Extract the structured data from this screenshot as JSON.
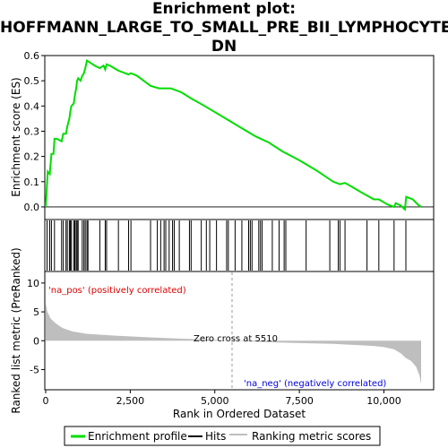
{
  "title_lines": [
    "Enrichment plot:",
    "HOFFMANN_LARGE_TO_SMALL_PRE_BII_LYMPHOCYTE_",
    "DN"
  ],
  "colors": {
    "es_line": "#00dd00",
    "hits": "#000000",
    "metric_fill": "#bebebe",
    "pos_label": "#dd0000",
    "neg_label": "#0000dd",
    "zero_cross": "#999999",
    "frame": "#000000"
  },
  "chart_data": {
    "type": "line",
    "top_panel": {
      "ylabel": "Enrichment score (ES)",
      "ylim": [
        -0.05,
        0.6
      ],
      "yticks": [
        "0.0",
        "0.1",
        "0.2",
        "0.3",
        "0.4",
        "0.5",
        "0.6"
      ],
      "xlim": [
        0,
        11100
      ],
      "es_points": [
        [
          0,
          0.0
        ],
        [
          60,
          0.14
        ],
        [
          120,
          0.13
        ],
        [
          170,
          0.21
        ],
        [
          230,
          0.21
        ],
        [
          260,
          0.27
        ],
        [
          330,
          0.27
        ],
        [
          470,
          0.26
        ],
        [
          520,
          0.29
        ],
        [
          600,
          0.29
        ],
        [
          640,
          0.32
        ],
        [
          700,
          0.35
        ],
        [
          730,
          0.38
        ],
        [
          760,
          0.4
        ],
        [
          830,
          0.41
        ],
        [
          860,
          0.44
        ],
        [
          900,
          0.47
        ],
        [
          930,
          0.5
        ],
        [
          960,
          0.51
        ],
        [
          1030,
          0.5
        ],
        [
          1080,
          0.52
        ],
        [
          1130,
          0.53
        ],
        [
          1170,
          0.55
        ],
        [
          1220,
          0.58
        ],
        [
          1280,
          0.575
        ],
        [
          1450,
          0.56
        ],
        [
          1600,
          0.55
        ],
        [
          1650,
          0.555
        ],
        [
          1710,
          0.56
        ],
        [
          1760,
          0.545
        ],
        [
          1800,
          0.565
        ],
        [
          1900,
          0.56
        ],
        [
          2150,
          0.54
        ],
        [
          2450,
          0.525
        ],
        [
          2520,
          0.53
        ],
        [
          2700,
          0.52
        ],
        [
          3100,
          0.48
        ],
        [
          3350,
          0.47
        ],
        [
          3700,
          0.47
        ],
        [
          4000,
          0.455
        ],
        [
          4300,
          0.43
        ],
        [
          4700,
          0.4
        ],
        [
          5200,
          0.36
        ],
        [
          5700,
          0.32
        ],
        [
          6200,
          0.28
        ],
        [
          6600,
          0.255
        ],
        [
          7000,
          0.22
        ],
        [
          7500,
          0.185
        ],
        [
          8000,
          0.145
        ],
        [
          8500,
          0.1
        ],
        [
          8700,
          0.09
        ],
        [
          8850,
          0.095
        ],
        [
          9050,
          0.08
        ],
        [
          9300,
          0.06
        ],
        [
          9500,
          0.045
        ],
        [
          9700,
          0.03
        ],
        [
          9850,
          0.03
        ],
        [
          10100,
          0.01
        ],
        [
          10300,
          0.0
        ],
        [
          10350,
          0.015
        ],
        [
          10500,
          0.005
        ],
        [
          10620,
          -0.01
        ],
        [
          10660,
          0.04
        ],
        [
          10850,
          0.03
        ],
        [
          11000,
          0.01
        ],
        [
          11100,
          0.0
        ]
      ],
      "hit_ranks": [
        40,
        120,
        170,
        260,
        470,
        520,
        600,
        640,
        700,
        730,
        760,
        830,
        860,
        900,
        930,
        960,
        1080,
        1130,
        1170,
        1220,
        1250,
        1600,
        1760,
        1800,
        2150,
        2450,
        2520,
        3100,
        3300,
        3400,
        3500,
        3550,
        3650,
        3750,
        3800,
        3950,
        4250,
        4300,
        4600,
        4750,
        4850,
        5050,
        5350,
        5400,
        5600,
        5800,
        6000,
        6050,
        6100,
        6300,
        6350,
        6400,
        6700,
        6900,
        7050,
        7100,
        7700,
        8400,
        8650,
        8700,
        8850,
        9500,
        9850,
        10300,
        10650
      ]
    },
    "bottom_panel": {
      "xlabel": "Rank in Ordered Dataset",
      "ylabel": "Ranked list metric (PreRanked)",
      "ylim": [
        -8.5,
        12
      ],
      "yticks": [
        "-5",
        "0",
        "5",
        "10"
      ],
      "xticks": [
        "0",
        "2,500",
        "5,000",
        "7,500",
        "10,000"
      ],
      "xtick_values": [
        0,
        2500,
        5000,
        7500,
        10000
      ],
      "metric_profile": [
        [
          0,
          6.5
        ],
        [
          50,
          5.0
        ],
        [
          150,
          3.8
        ],
        [
          300,
          3.0
        ],
        [
          500,
          2.2
        ],
        [
          800,
          1.6
        ],
        [
          1200,
          1.2
        ],
        [
          2000,
          0.9
        ],
        [
          3000,
          0.6
        ],
        [
          4000,
          0.35
        ],
        [
          5000,
          0.15
        ],
        [
          5510,
          0.0
        ],
        [
          6500,
          -0.25
        ],
        [
          7500,
          -0.4
        ],
        [
          8500,
          -0.55
        ],
        [
          9200,
          -0.75
        ],
        [
          9700,
          -0.9
        ],
        [
          10000,
          -1.1
        ],
        [
          10300,
          -1.5
        ],
        [
          10500,
          -2.2
        ],
        [
          10650,
          -3.0
        ],
        [
          10800,
          -3.5
        ],
        [
          10950,
          -4.5
        ],
        [
          11050,
          -6.0
        ],
        [
          11100,
          -7.5
        ]
      ],
      "zero_cross_rank": 5510,
      "zero_cross_label": "Zero cross at 5510",
      "pos_label": "'na_pos' (positively correlated)",
      "neg_label": "'na_neg' (negatively correlated)"
    },
    "legend": [
      "Enrichment profile",
      "Hits",
      "Ranking metric scores"
    ]
  }
}
